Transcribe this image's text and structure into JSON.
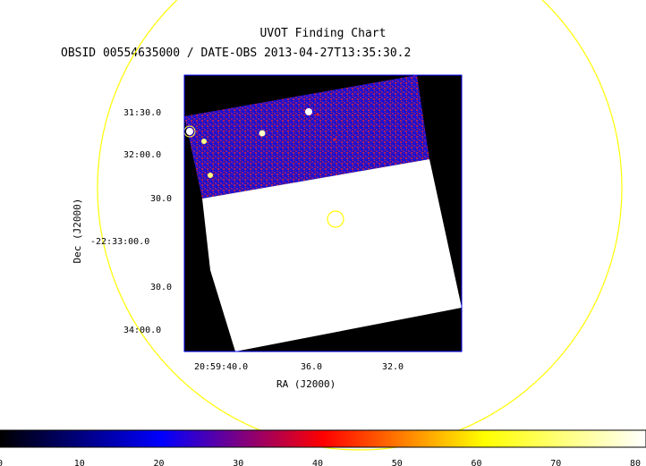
{
  "title": "UVOT Finding Chart",
  "subtitle": "OBSID 00554635000 / DATE-OBS 2013-04-27T13:35:30.2",
  "chart_data": {
    "type": "heatmap",
    "title": "UVOT Finding Chart",
    "subtitle": "OBSID 00554635000 / DATE-OBS 2013-04-27T13:35:30.2",
    "xlabel": "RA (J2000)",
    "ylabel": "Dec (J2000)",
    "x_ticks": [
      "20:59:40.0",
      "36.0",
      "32.0"
    ],
    "y_ticks": [
      "31:30.0",
      "32:00.0",
      "30.0",
      "-22:33:00.0",
      "30.0",
      "34:00.0"
    ],
    "colorbar": {
      "ticks": [
        0,
        10,
        20,
        30,
        40,
        50,
        60,
        70,
        80
      ],
      "range": [
        0,
        80
      ],
      "colormap": [
        "#000000",
        "#0000ff",
        "#ff0000",
        "#ffff00",
        "#ffffff"
      ]
    },
    "markers": [
      {
        "shape": "circle",
        "size": "small",
        "color": "#ffff00"
      },
      {
        "shape": "circle",
        "size": "large",
        "color": "#ffff00"
      }
    ],
    "grid": false
  },
  "colors": {
    "frame": "#0000ff",
    "marker": "#ffff00",
    "background": "#000000",
    "saturated": "#ffffff"
  }
}
